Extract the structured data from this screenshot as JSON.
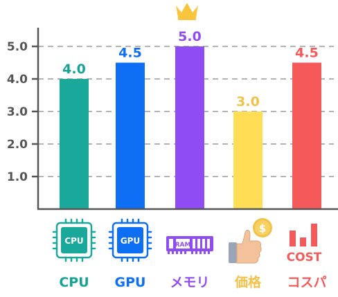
{
  "chart_data": {
    "type": "bar",
    "categories": [
      "CPU",
      "GPU",
      "メモリ",
      "価格",
      "コスパ"
    ],
    "values": [
      4.0,
      4.5,
      5.0,
      3.0,
      4.5
    ],
    "value_labels": [
      "4.0",
      "4.5",
      "5.0",
      "3.0",
      "4.5"
    ],
    "colors": [
      "#1aa89a",
      "#0e6ff5",
      "#8f4cf2",
      "#ffdd55",
      "#f45a5a"
    ],
    "label_colors": [
      "#15a394",
      "#0e6ff5",
      "#8f4cf2",
      "#f2c14a",
      "#f45a5a"
    ],
    "yticks": [
      "1.0",
      "2.0",
      "3.0",
      "4.0",
      "5.0"
    ],
    "ylim": [
      0,
      5.0
    ],
    "grid": true,
    "icons": [
      "cpu-chip-icon",
      "gpu-chip-icon",
      "ram-module-icon",
      "thumbs-up-coin-icon",
      "cost-bars-icon"
    ],
    "icon_text": {
      "cpu": "CPU",
      "gpu": "GPU",
      "ram": "RAM",
      "cost": "COST"
    },
    "highlight": {
      "category": "メモリ",
      "icon": "crown-icon",
      "color": "#f9c53c"
    }
  }
}
